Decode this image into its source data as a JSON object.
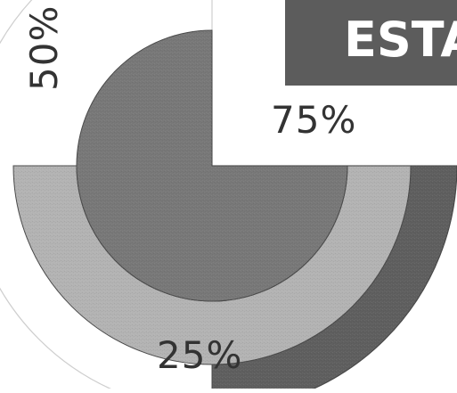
{
  "title": "ESTA",
  "colors": {
    "title_box": "#5c5c5c",
    "title_text": "#ffffff",
    "outer_ring": "#5f5f5f",
    "middle_ring": "#b3b3b3",
    "inner_wedge": "#787878",
    "label_text": "#333333"
  },
  "chart_data": {
    "type": "pie",
    "chart_style": "concentric percentage rings",
    "series": [
      {
        "label": "25%",
        "value": 25,
        "color": "#5f5f5f"
      },
      {
        "label": "50%",
        "value": 50,
        "color": "#b3b3b3"
      },
      {
        "label": "75%",
        "value": 75,
        "color": "#787878"
      }
    ]
  }
}
